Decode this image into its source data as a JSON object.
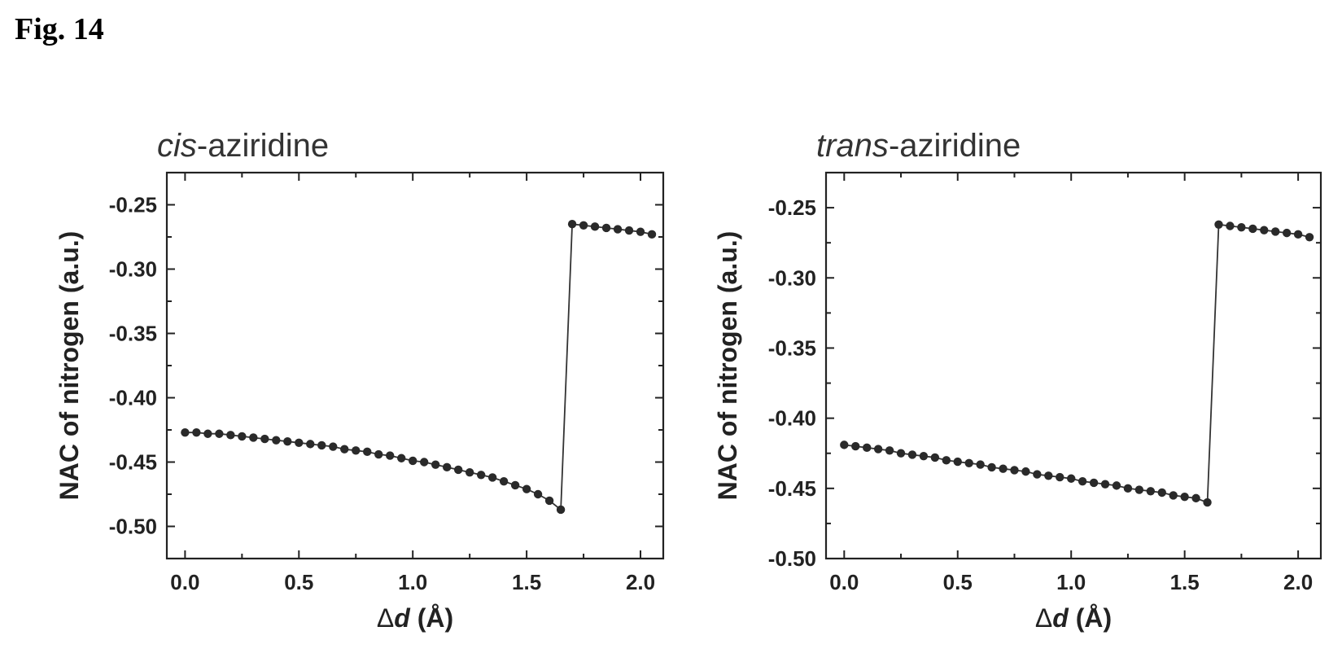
{
  "figure_label": "Fig. 14",
  "chart_data": [
    {
      "type": "line",
      "title_italic": "cis",
      "title_rest": "-aziridine",
      "xlabel_symbol": "Δ",
      "xlabel_var": "d",
      "xlabel_unit": " (Å)",
      "ylabel": "NAC of nitrogen (a.u.)",
      "xlim": [
        -0.08,
        2.1
      ],
      "ylim": [
        -0.525,
        -0.225
      ],
      "xticks": [
        0.0,
        0.5,
        1.0,
        1.5,
        2.0
      ],
      "xtick_labels": [
        "0.0",
        "0.5",
        "1.0",
        "1.5",
        "2.0"
      ],
      "yticks": [
        -0.25,
        -0.3,
        -0.35,
        -0.4,
        -0.45,
        -0.5
      ],
      "ytick_labels": [
        "-0.25",
        "-0.30",
        "-0.35",
        "-0.40",
        "-0.45",
        "-0.50"
      ],
      "series": [
        {
          "x": [
            0.0,
            0.05,
            0.1,
            0.15,
            0.2,
            0.25,
            0.3,
            0.35,
            0.4,
            0.45,
            0.5,
            0.55,
            0.6,
            0.65,
            0.7,
            0.75,
            0.8,
            0.85,
            0.9,
            0.95,
            1.0,
            1.05,
            1.1,
            1.15,
            1.2,
            1.25,
            1.3,
            1.35,
            1.4,
            1.45,
            1.5,
            1.55,
            1.6,
            1.65,
            1.7,
            1.75,
            1.8,
            1.85,
            1.9,
            1.95,
            2.0,
            2.05
          ],
          "y": [
            -0.427,
            -0.427,
            -0.428,
            -0.428,
            -0.429,
            -0.43,
            -0.431,
            -0.432,
            -0.433,
            -0.434,
            -0.435,
            -0.436,
            -0.437,
            -0.438,
            -0.44,
            -0.441,
            -0.442,
            -0.444,
            -0.445,
            -0.447,
            -0.449,
            -0.45,
            -0.452,
            -0.454,
            -0.456,
            -0.458,
            -0.46,
            -0.462,
            -0.465,
            -0.468,
            -0.471,
            -0.475,
            -0.48,
            -0.487,
            -0.265,
            -0.266,
            -0.267,
            -0.268,
            -0.269,
            -0.27,
            -0.271,
            -0.273
          ]
        }
      ]
    },
    {
      "type": "line",
      "title_italic": "trans",
      "title_rest": "-aziridine",
      "xlabel_symbol": "Δ",
      "xlabel_var": "d",
      "xlabel_unit": " (Å)",
      "ylabel": "NAC of nitrogen (a.u.)",
      "xlim": [
        -0.08,
        2.1
      ],
      "ylim": [
        -0.5,
        -0.225
      ],
      "xticks": [
        0.0,
        0.5,
        1.0,
        1.5,
        2.0
      ],
      "xtick_labels": [
        "0.0",
        "0.5",
        "1.0",
        "1.5",
        "2.0"
      ],
      "yticks": [
        -0.25,
        -0.3,
        -0.35,
        -0.4,
        -0.45,
        -0.5
      ],
      "ytick_labels": [
        "-0.25",
        "-0.30",
        "-0.35",
        "-0.40",
        "-0.45",
        "-0.50"
      ],
      "series": [
        {
          "x": [
            0.0,
            0.05,
            0.1,
            0.15,
            0.2,
            0.25,
            0.3,
            0.35,
            0.4,
            0.45,
            0.5,
            0.55,
            0.6,
            0.65,
            0.7,
            0.75,
            0.8,
            0.85,
            0.9,
            0.95,
            1.0,
            1.05,
            1.1,
            1.15,
            1.2,
            1.25,
            1.3,
            1.35,
            1.4,
            1.45,
            1.5,
            1.55,
            1.6,
            1.65,
            1.7,
            1.75,
            1.8,
            1.85,
            1.9,
            1.95,
            2.0,
            2.05
          ],
          "y": [
            -0.419,
            -0.42,
            -0.421,
            -0.422,
            -0.423,
            -0.425,
            -0.426,
            -0.427,
            -0.428,
            -0.43,
            -0.431,
            -0.432,
            -0.433,
            -0.435,
            -0.436,
            -0.437,
            -0.438,
            -0.44,
            -0.441,
            -0.442,
            -0.443,
            -0.445,
            -0.446,
            -0.447,
            -0.448,
            -0.45,
            -0.451,
            -0.452,
            -0.453,
            -0.455,
            -0.456,
            -0.457,
            -0.46,
            -0.262,
            -0.263,
            -0.264,
            -0.265,
            -0.266,
            -0.267,
            -0.268,
            -0.269,
            -0.271
          ]
        }
      ]
    }
  ]
}
